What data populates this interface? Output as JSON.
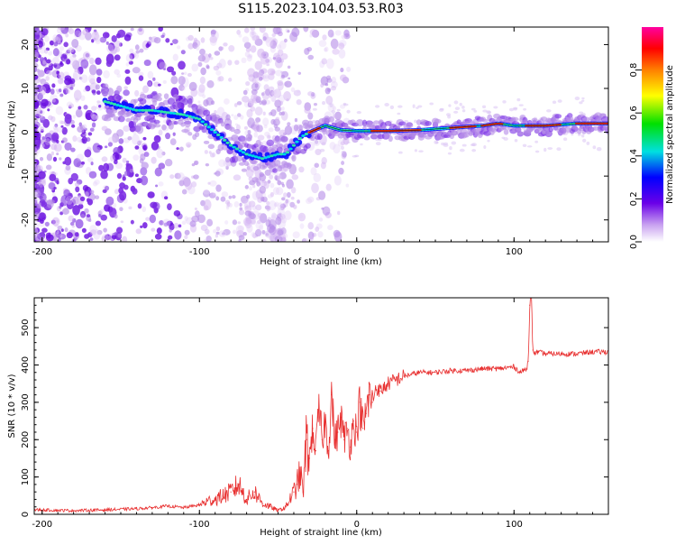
{
  "figure_title": "S115.2023.104.03.53.R03",
  "chart_data": [
    {
      "type": "heatmap",
      "xlabel": "Height of straight line (km)",
      "ylabel": "Frequency (Hz)",
      "xlim": [
        -205,
        160
      ],
      "ylim": [
        -25,
        24
      ],
      "xticks": [
        -200,
        -100,
        0,
        100
      ],
      "yticks": [
        20,
        10,
        0,
        -10,
        -20
      ],
      "ridge": {
        "x": [
          -160,
          -150,
          -140,
          -130,
          -120,
          -110,
          -100,
          -90,
          -80,
          -70,
          -60,
          -50,
          -45,
          -40,
          -35,
          -30,
          -20,
          -10,
          0,
          20,
          40,
          60,
          80,
          90,
          100,
          110,
          120,
          140,
          160
        ],
        "y": [
          7,
          6,
          5,
          5,
          4.5,
          4,
          3,
          0,
          -3,
          -5,
          -6,
          -5,
          -5,
          -3,
          -1,
          0,
          1.5,
          0.5,
          0.3,
          0.3,
          0.5,
          1,
          1.5,
          2,
          1.5,
          1.5,
          1.5,
          2,
          2
        ]
      },
      "colorbar": {
        "label": "Normalized spectral amplitude",
        "range": [
          0,
          1
        ],
        "ticks": [
          "0.0",
          "0.2",
          "0.4",
          "0.6",
          "0.8"
        ],
        "colors": [
          "#ffffff",
          "#c8a0f0",
          "#6a00e8",
          "#0000ff",
          "#00e0e0",
          "#00e000",
          "#ffff00",
          "#ff8000",
          "#ff0000",
          "#ff00a0"
        ]
      }
    },
    {
      "type": "line",
      "xlabel": "Height of straight line (km)",
      "ylabel": "SNR (10 * v/v)",
      "xlim": [
        -205,
        160
      ],
      "ylim": [
        0,
        580
      ],
      "xticks": [
        -200,
        -100,
        0,
        100
      ],
      "yticks": [
        0,
        100,
        200,
        300,
        400,
        500
      ],
      "color": "#e83030",
      "series": [
        {
          "x": [
            -205,
            -180,
            -160,
            -140,
            -130,
            -120,
            -110,
            -100,
            -95,
            -90,
            -85,
            -80,
            -75,
            -70,
            -65,
            -60,
            -55,
            -50,
            -45,
            -40,
            -38,
            -36,
            -34,
            -32,
            -30,
            -28,
            -26,
            -24,
            -22,
            -20,
            -18,
            -16,
            -14,
            -12,
            -10,
            -8,
            -6,
            -4,
            -2,
            0,
            2,
            4,
            6,
            8,
            10,
            12,
            15,
            20,
            25,
            30,
            35,
            40,
            50,
            60,
            70,
            80,
            90,
            100,
            104,
            108,
            109,
            110,
            111,
            112,
            113,
            114,
            120,
            130,
            140,
            150,
            160
          ],
          "y": [
            12,
            10,
            12,
            15,
            18,
            22,
            18,
            25,
            35,
            40,
            50,
            60,
            80,
            40,
            60,
            30,
            20,
            10,
            20,
            60,
            80,
            110,
            60,
            200,
            150,
            230,
            170,
            280,
            200,
            250,
            170,
            320,
            200,
            220,
            260,
            200,
            230,
            180,
            250,
            220,
            300,
            230,
            270,
            320,
            300,
            340,
            330,
            350,
            360,
            370,
            375,
            380,
            380,
            385,
            385,
            390,
            390,
            395,
            380,
            390,
            410,
            560,
            580,
            440,
            430,
            435,
            430,
            430,
            430,
            435,
            435
          ]
        }
      ]
    }
  ]
}
